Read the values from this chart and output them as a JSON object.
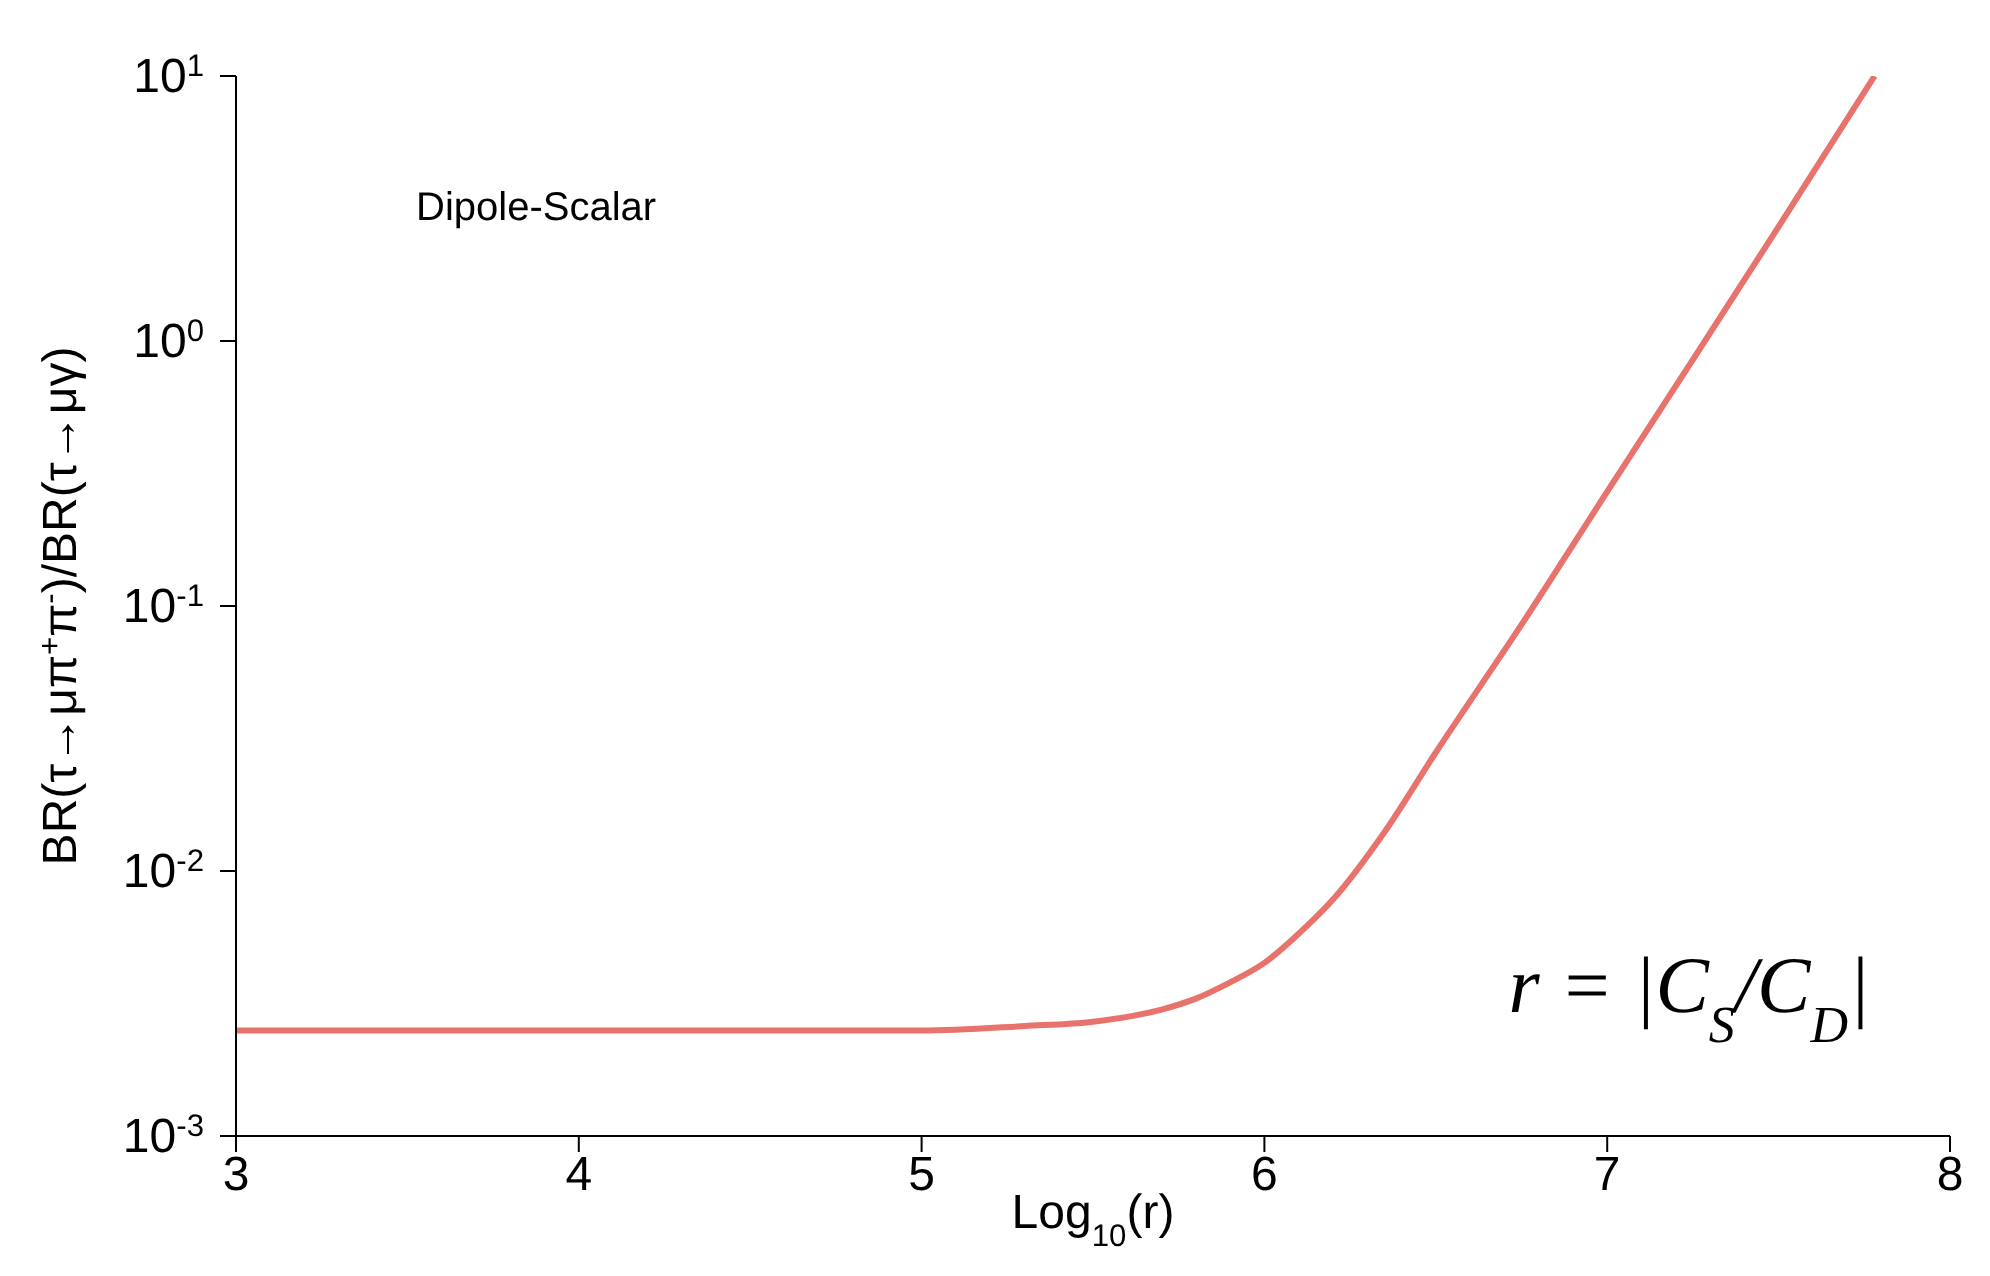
{
  "chart_data": {
    "type": "line",
    "xlabel": "Log$_{10}$(r)",
    "ylabel": "BR(τ→μπ$^{+}$π$^{-}$)/BR(τ→μγ)",
    "annotations": [
      "Dipole-Scalar",
      "r = |C$_{S}$/C$_{D}$|"
    ],
    "log": "y",
    "grid": false,
    "legend": false,
    "marker": "none",
    "line_style": "solid",
    "xlim": [
      3,
      8
    ],
    "xticks": [
      3,
      4,
      5,
      6,
      7,
      8
    ],
    "ylim": [
      0.001,
      10
    ],
    "yticks": [
      {
        "value": 0.001,
        "label": "10$^{-3}$"
      },
      {
        "value": 0.01,
        "label": "10$^{-2}$"
      },
      {
        "value": 0.1,
        "label": "10$^{-1}$"
      },
      {
        "value": 1,
        "label": "10$^{0}$"
      },
      {
        "value": 10,
        "label": "10$^{1}$"
      }
    ],
    "series": [
      {
        "color": "#e8736c",
        "x": [
          3,
          4,
          5,
          5.3,
          5.5,
          5.7,
          5.8,
          5.9,
          6,
          6.1,
          6.2,
          6.35,
          6.5,
          6.75,
          7,
          7.25,
          7.5,
          7.78
        ],
        "values": [
          0.0025,
          0.0025,
          0.0025,
          0.0026,
          0.0027,
          0.003,
          0.0033,
          0.0038,
          0.0045,
          0.0058,
          0.0078,
          0.014,
          0.028,
          0.085,
          0.27,
          0.85,
          2.7,
          10
        ]
      }
    ]
  }
}
